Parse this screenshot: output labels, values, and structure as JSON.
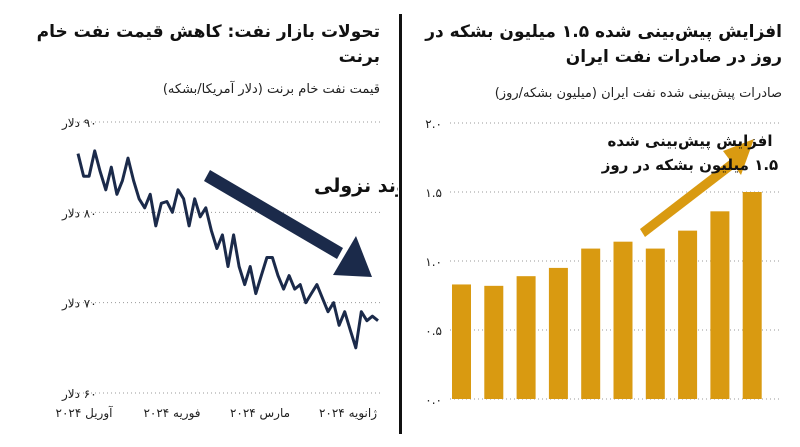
{
  "colors": {
    "line": "#1b2a4a",
    "arrow_dark": "#1b2a4a",
    "bar": "#d99a11",
    "arrow_gold": "#d99a11",
    "grid": "#9a9a9a"
  },
  "left": {
    "title": "تحولات بازار نفت: کاهش قیمت نفت خام برنت",
    "subtitle": "قیمت نفت خام برنت (دلار آمریکا/بشکه)",
    "annotation": "روند نزولی",
    "arrow_icon": "downward-trend-arrow"
  },
  "right": {
    "title": "افزایش پیش‌بینی شده ۱.۵ میلیون بشکه در روز در صادرات نفت ایران",
    "subtitle": "صادرات پیش‌بینی شده نفت ایران (میلیون بشکه/روز)",
    "annotation_line1": "افزایش پیش‌بینی شده",
    "annotation_line2": "۱.۵ میلیون بشکه در روز",
    "arrow_icon": "upward-trend-arrow"
  },
  "chart_data": [
    {
      "type": "line",
      "title": "تحولات بازار نفت: کاهش قیمت نفت خام برنت",
      "ylabel": "قیمت نفت خام برنت (دلار آمریکا/بشکه)",
      "ylim": [
        60,
        90
      ],
      "yticks": [
        60,
        70,
        80,
        90
      ],
      "ytick_labels": [
        "۶۰ دلار",
        "۷۰ دلار",
        "۸۰ دلار",
        "۹۰ دلار"
      ],
      "xtick_labels": [
        "آوریل ۲۰۲۴",
        "فوریه ۲۰۲۴",
        "مارس ۲۰۲۴",
        "ژانویه ۲۰۲۴"
      ],
      "grid": true,
      "series": [
        {
          "values": [
            86.5,
            84,
            84,
            86.8,
            84.5,
            82.5,
            85,
            82,
            83.5,
            86,
            83.5,
            81.5,
            80.5,
            82,
            78.5,
            81,
            81.2,
            80,
            82.5,
            81.5,
            78.5,
            81.5,
            79.5,
            80.5,
            78,
            76,
            77.5,
            74,
            77.5,
            74,
            72,
            74,
            71,
            73,
            75,
            75,
            73,
            71.5,
            73,
            71.5,
            72,
            70,
            71,
            72,
            70.5,
            69,
            70,
            67.5,
            69,
            67,
            65,
            69,
            68,
            68.5,
            68
          ]
        }
      ]
    },
    {
      "type": "bar",
      "title": "افزایش پیش‌بینی شده ۱.۵ میلیون بشکه در روز در صادرات نفت ایران",
      "ylabel": "صادرات پیش‌بینی شده نفت ایران (میلیون بشکه/روز)",
      "ylim": [
        0,
        2
      ],
      "yticks": [
        0,
        0.5,
        1,
        1.5,
        2
      ],
      "ytick_labels": [
        "۰.۰",
        "۰.۵",
        "۱.۰",
        "۱.۵",
        "۲.۰"
      ],
      "grid": true,
      "values": [
        0.83,
        0.82,
        0.89,
        0.95,
        1.09,
        1.14,
        1.09,
        1.22,
        1.36,
        1.5
      ]
    }
  ]
}
